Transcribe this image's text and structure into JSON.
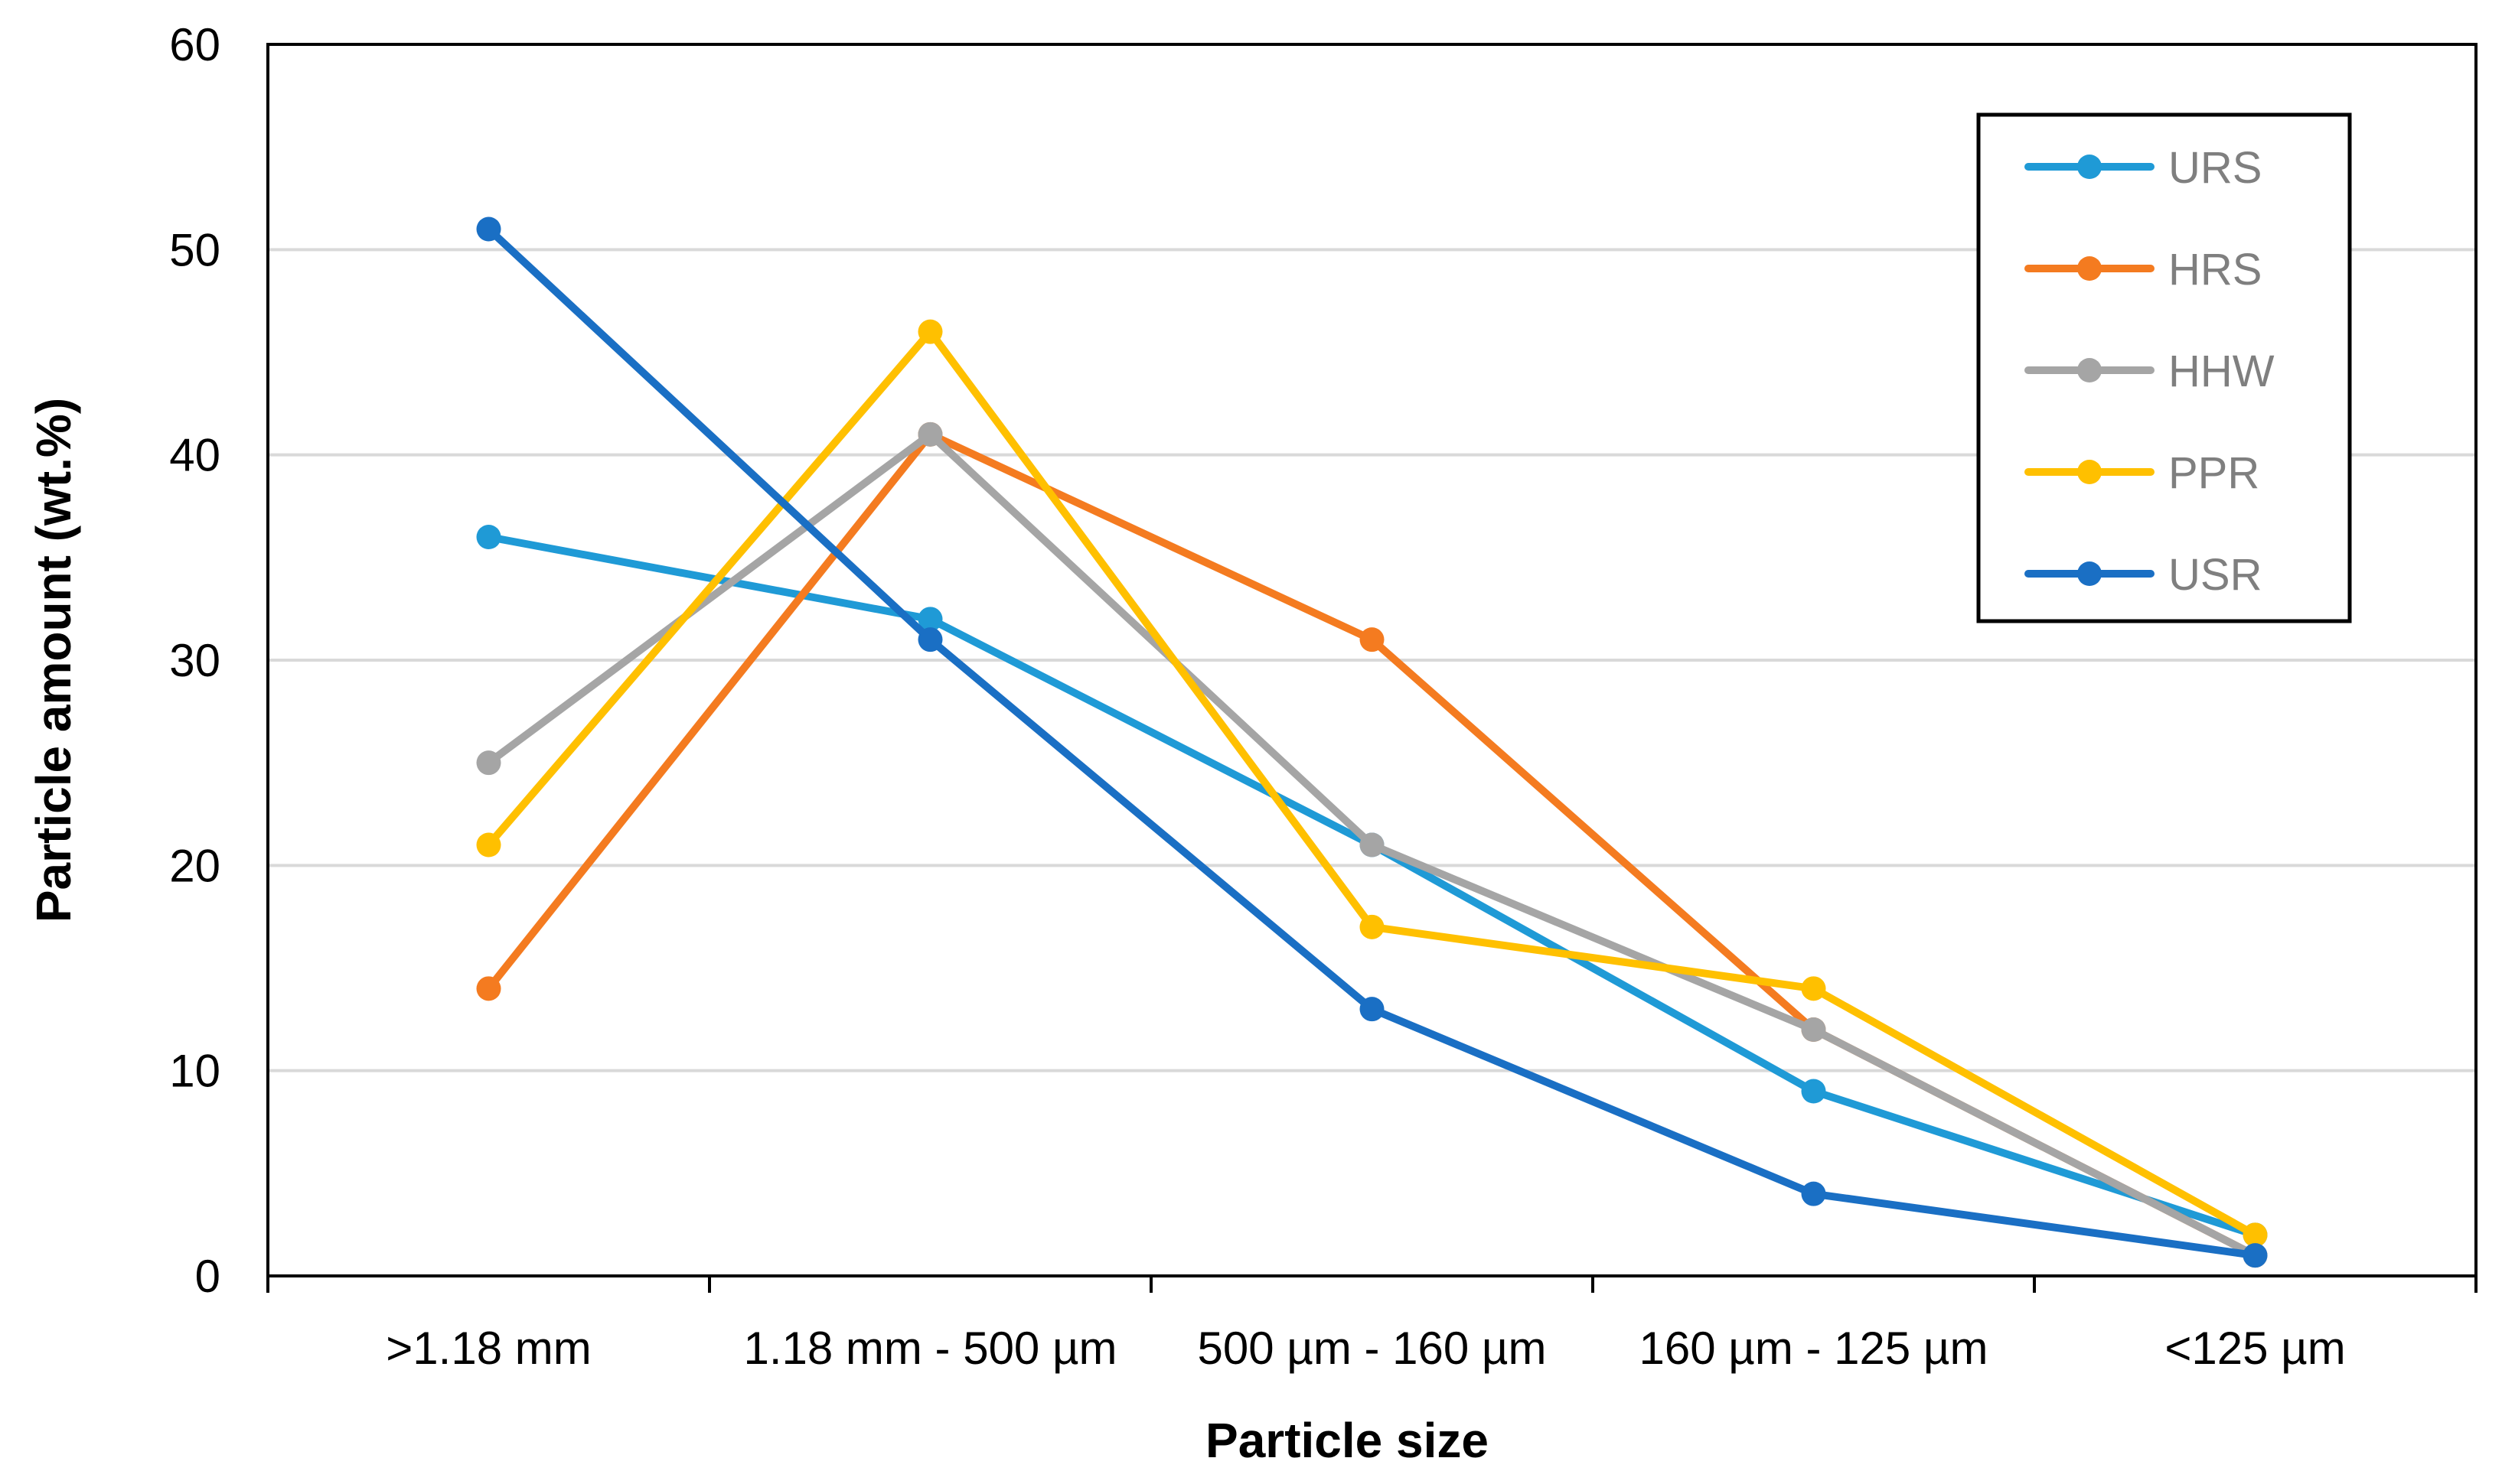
{
  "chart_data": {
    "type": "line",
    "title": "",
    "xlabel": "Particle size",
    "ylabel": "Particle amount (wt.%)",
    "categories": [
      ">1.18 mm",
      "1.18 mm - 500 µm",
      "500 µm - 160 µm",
      "160 µm - 125 µm",
      "<125 µm"
    ],
    "ylim": [
      0,
      60
    ],
    "yticks": [
      0,
      10,
      20,
      30,
      40,
      50,
      60
    ],
    "grid": true,
    "legend_position": "top-right",
    "series": [
      {
        "name": "URS",
        "color": "#1f9ad6",
        "values": [
          36,
          32,
          21,
          9,
          2
        ]
      },
      {
        "name": "HRS",
        "color": "#f47b20",
        "values": [
          14,
          41,
          31,
          12,
          1
        ]
      },
      {
        "name": "HHW",
        "color": "#a5a5a5",
        "values": [
          25,
          41,
          21,
          12,
          1
        ]
      },
      {
        "name": "PPR",
        "color": "#ffc000",
        "values": [
          21,
          46,
          17,
          14,
          2
        ]
      },
      {
        "name": "USR",
        "color": "#1a6fc4",
        "values": [
          51,
          31,
          13,
          4,
          1
        ]
      }
    ]
  }
}
